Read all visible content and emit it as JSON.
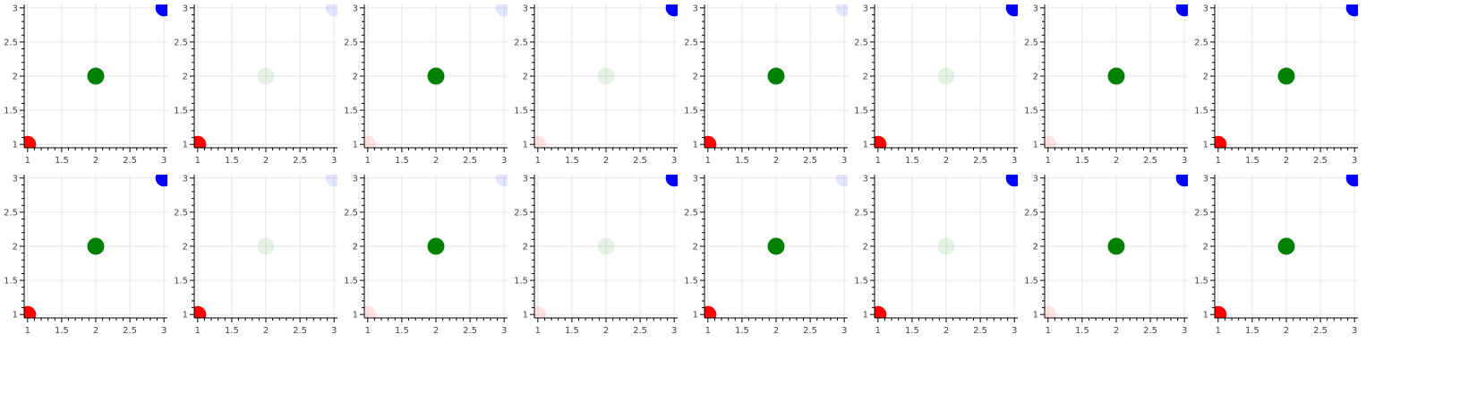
{
  "chart_data": {
    "type": "scatter",
    "layout": "grid",
    "rows": 2,
    "cols": 8,
    "xlim": [
      0.95,
      3.05
    ],
    "ylim": [
      0.95,
      3.05
    ],
    "x_ticks": [
      1,
      1.5,
      2,
      2.5,
      3
    ],
    "y_ticks": [
      1,
      1.5,
      2,
      2.5,
      3
    ],
    "x_tick_labels": [
      "1",
      "1.5",
      "2",
      "2.5",
      "3"
    ],
    "y_tick_labels": [
      "1",
      "1.5",
      "2",
      "2.5",
      "3"
    ],
    "grid": true,
    "points": [
      {
        "x": 1,
        "y": 1,
        "color": "#ff0000"
      },
      {
        "x": 2,
        "y": 2,
        "color": "#008000"
      },
      {
        "x": 3,
        "y": 3,
        "color": "#0000ff"
      }
    ],
    "panel_alphas": [
      [
        1.0,
        1.0,
        1.0
      ],
      [
        1.0,
        0.1,
        0.1
      ],
      [
        0.1,
        1.0,
        0.1
      ],
      [
        0.1,
        0.1,
        1.0
      ],
      [
        1.0,
        1.0,
        0.1
      ],
      [
        1.0,
        0.1,
        1.0
      ],
      [
        0.1,
        1.0,
        1.0
      ],
      [
        1.0,
        1.0,
        1.0
      ]
    ]
  }
}
